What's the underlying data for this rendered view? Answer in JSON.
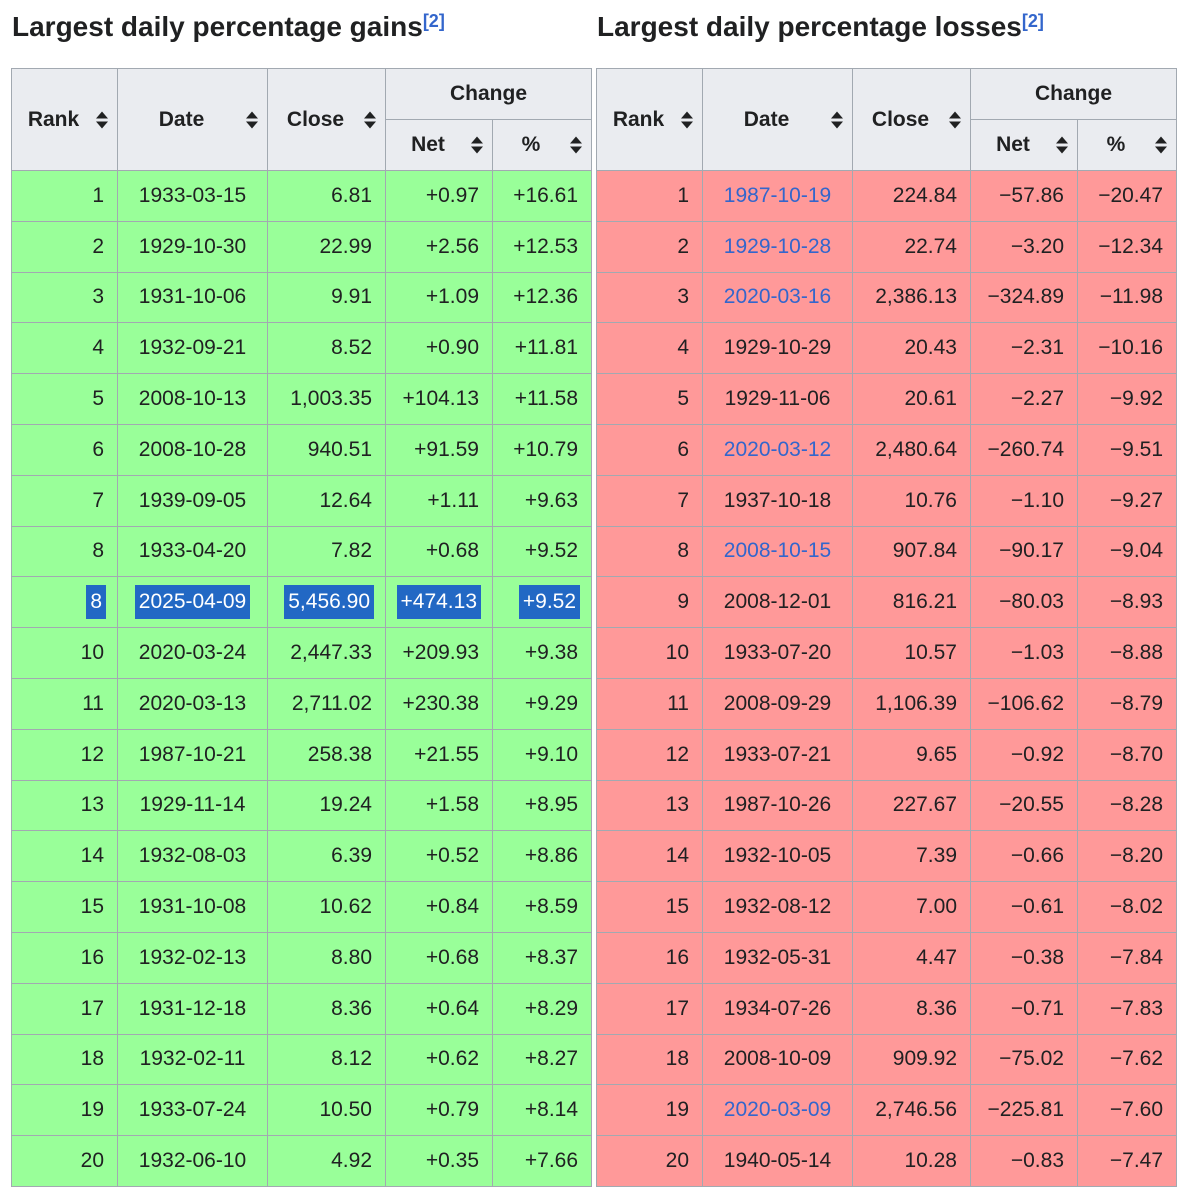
{
  "colors": {
    "gain_bg": "#99ff99",
    "loss_bg": "#ff9999",
    "header_bg": "#eaecf0",
    "border": "#a2a9b1",
    "link": "#3366cc",
    "selection_bg": "#2268c4",
    "selection_fg": "#ffffff",
    "text": "#202122"
  },
  "tables": [
    {
      "title": "Largest daily percentage gains",
      "ref_label": "[2]",
      "type": "gain",
      "columns": {
        "rank": "Rank",
        "date": "Date",
        "close": "Close",
        "change": "Change",
        "net": "Net",
        "pct": "%"
      },
      "rows": [
        {
          "rank": "1",
          "date": "1933-03-15",
          "close": "6.81",
          "net": "+0.97",
          "pct": "+16.61"
        },
        {
          "rank": "2",
          "date": "1929-10-30",
          "close": "22.99",
          "net": "+2.56",
          "pct": "+12.53"
        },
        {
          "rank": "3",
          "date": "1931-10-06",
          "close": "9.91",
          "net": "+1.09",
          "pct": "+12.36"
        },
        {
          "rank": "4",
          "date": "1932-09-21",
          "close": "8.52",
          "net": "+0.90",
          "pct": "+11.81"
        },
        {
          "rank": "5",
          "date": "2008-10-13",
          "close": "1,003.35",
          "net": "+104.13",
          "pct": "+11.58"
        },
        {
          "rank": "6",
          "date": "2008-10-28",
          "close": "940.51",
          "net": "+91.59",
          "pct": "+10.79"
        },
        {
          "rank": "7",
          "date": "1939-09-05",
          "close": "12.64",
          "net": "+1.11",
          "pct": "+9.63"
        },
        {
          "rank": "8",
          "date": "1933-04-20",
          "close": "7.82",
          "net": "+0.68",
          "pct": "+9.52"
        },
        {
          "rank": "8",
          "date": "2025-04-09",
          "close": "5,456.90",
          "net": "+474.13",
          "pct": "+9.52",
          "selected": true
        },
        {
          "rank": "10",
          "date": "2020-03-24",
          "close": "2,447.33",
          "net": "+209.93",
          "pct": "+9.38"
        },
        {
          "rank": "11",
          "date": "2020-03-13",
          "close": "2,711.02",
          "net": "+230.38",
          "pct": "+9.29"
        },
        {
          "rank": "12",
          "date": "1987-10-21",
          "close": "258.38",
          "net": "+21.55",
          "pct": "+9.10"
        },
        {
          "rank": "13",
          "date": "1929-11-14",
          "close": "19.24",
          "net": "+1.58",
          "pct": "+8.95"
        },
        {
          "rank": "14",
          "date": "1932-08-03",
          "close": "6.39",
          "net": "+0.52",
          "pct": "+8.86"
        },
        {
          "rank": "15",
          "date": "1931-10-08",
          "close": "10.62",
          "net": "+0.84",
          "pct": "+8.59"
        },
        {
          "rank": "16",
          "date": "1932-02-13",
          "close": "8.80",
          "net": "+0.68",
          "pct": "+8.37"
        },
        {
          "rank": "17",
          "date": "1931-12-18",
          "close": "8.36",
          "net": "+0.64",
          "pct": "+8.29"
        },
        {
          "rank": "18",
          "date": "1932-02-11",
          "close": "8.12",
          "net": "+0.62",
          "pct": "+8.27"
        },
        {
          "rank": "19",
          "date": "1933-07-24",
          "close": "10.50",
          "net": "+0.79",
          "pct": "+8.14"
        },
        {
          "rank": "20",
          "date": "1932-06-10",
          "close": "4.92",
          "net": "+0.35",
          "pct": "+7.66"
        }
      ]
    },
    {
      "title": "Largest daily percentage losses",
      "ref_label": "[2]",
      "type": "loss",
      "columns": {
        "rank": "Rank",
        "date": "Date",
        "close": "Close",
        "change": "Change",
        "net": "Net",
        "pct": "%"
      },
      "rows": [
        {
          "rank": "1",
          "date": "1987-10-19",
          "close": "224.84",
          "net": "−57.86",
          "pct": "−20.47",
          "link": true
        },
        {
          "rank": "2",
          "date": "1929-10-28",
          "close": "22.74",
          "net": "−3.20",
          "pct": "−12.34",
          "link": true
        },
        {
          "rank": "3",
          "date": "2020-03-16",
          "close": "2,386.13",
          "net": "−324.89",
          "pct": "−11.98",
          "link": true
        },
        {
          "rank": "4",
          "date": "1929-10-29",
          "close": "20.43",
          "net": "−2.31",
          "pct": "−10.16"
        },
        {
          "rank": "5",
          "date": "1929-11-06",
          "close": "20.61",
          "net": "−2.27",
          "pct": "−9.92"
        },
        {
          "rank": "6",
          "date": "2020-03-12",
          "close": "2,480.64",
          "net": "−260.74",
          "pct": "−9.51",
          "link": true
        },
        {
          "rank": "7",
          "date": "1937-10-18",
          "close": "10.76",
          "net": "−1.10",
          "pct": "−9.27"
        },
        {
          "rank": "8",
          "date": "2008-10-15",
          "close": "907.84",
          "net": "−90.17",
          "pct": "−9.04",
          "link": true
        },
        {
          "rank": "9",
          "date": "2008-12-01",
          "close": "816.21",
          "net": "−80.03",
          "pct": "−8.93"
        },
        {
          "rank": "10",
          "date": "1933-07-20",
          "close": "10.57",
          "net": "−1.03",
          "pct": "−8.88"
        },
        {
          "rank": "11",
          "date": "2008-09-29",
          "close": "1,106.39",
          "net": "−106.62",
          "pct": "−8.79"
        },
        {
          "rank": "12",
          "date": "1933-07-21",
          "close": "9.65",
          "net": "−0.92",
          "pct": "−8.70"
        },
        {
          "rank": "13",
          "date": "1987-10-26",
          "close": "227.67",
          "net": "−20.55",
          "pct": "−8.28"
        },
        {
          "rank": "14",
          "date": "1932-10-05",
          "close": "7.39",
          "net": "−0.66",
          "pct": "−8.20"
        },
        {
          "rank": "15",
          "date": "1932-08-12",
          "close": "7.00",
          "net": "−0.61",
          "pct": "−8.02"
        },
        {
          "rank": "16",
          "date": "1932-05-31",
          "close": "4.47",
          "net": "−0.38",
          "pct": "−7.84"
        },
        {
          "rank": "17",
          "date": "1934-07-26",
          "close": "8.36",
          "net": "−0.71",
          "pct": "−7.83"
        },
        {
          "rank": "18",
          "date": "2008-10-09",
          "close": "909.92",
          "net": "−75.02",
          "pct": "−7.62"
        },
        {
          "rank": "19",
          "date": "2020-03-09",
          "close": "2,746.56",
          "net": "−225.81",
          "pct": "−7.60",
          "link": true
        },
        {
          "rank": "20",
          "date": "1940-05-14",
          "close": "10.28",
          "net": "−0.83",
          "pct": "−7.47"
        }
      ]
    }
  ]
}
